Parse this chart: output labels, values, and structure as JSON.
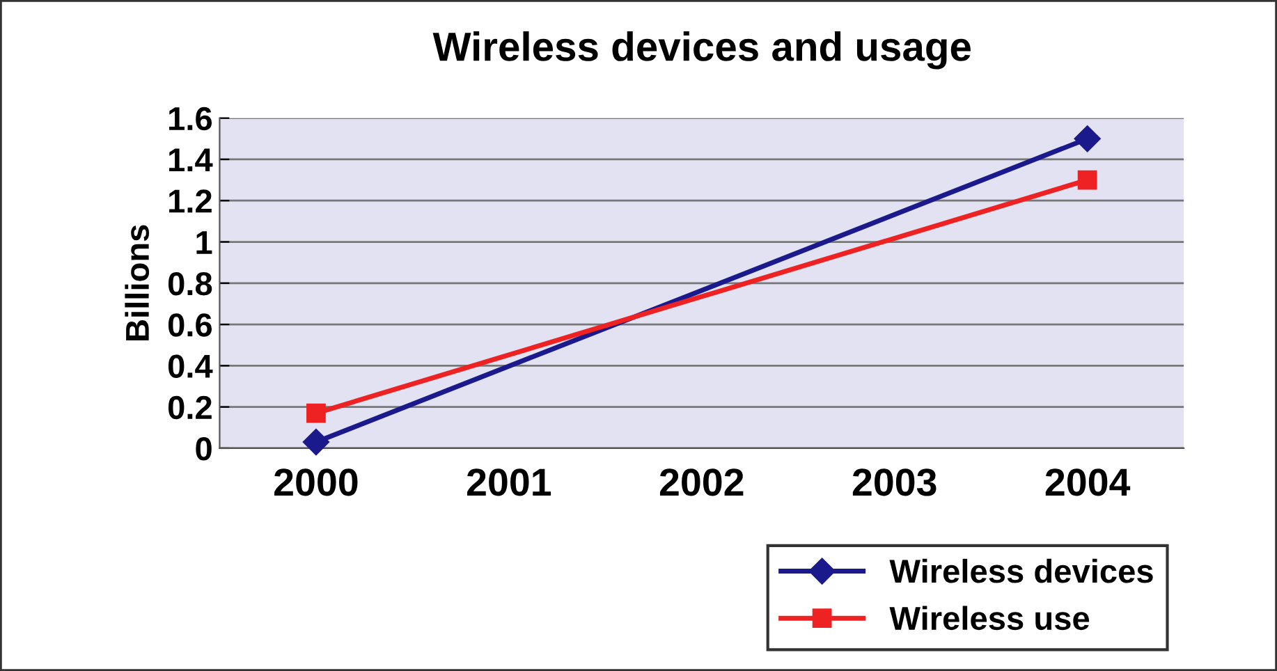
{
  "chart_data": {
    "type": "line",
    "title": "Wireless devices and usage",
    "ylabel": "Billions",
    "x": [
      2000,
      2004
    ],
    "xlim": [
      1999.5,
      2004.5
    ],
    "xticks": [
      2000,
      2001,
      2002,
      2003,
      2004
    ],
    "ylim": [
      0,
      1.6
    ],
    "yticks": [
      0,
      0.2,
      0.4,
      0.6,
      0.8,
      1,
      1.2,
      1.4,
      1.6
    ],
    "grid": "y",
    "legend": "bottom right",
    "series": [
      {
        "name": "Wireless devices",
        "color": "#1a1a8c",
        "values": [
          0.03,
          1.5
        ],
        "marker": "diamond"
      },
      {
        "name": "Wireless use",
        "color": "#ee2222",
        "values": [
          0.17,
          1.3
        ],
        "marker": "square"
      }
    ]
  }
}
